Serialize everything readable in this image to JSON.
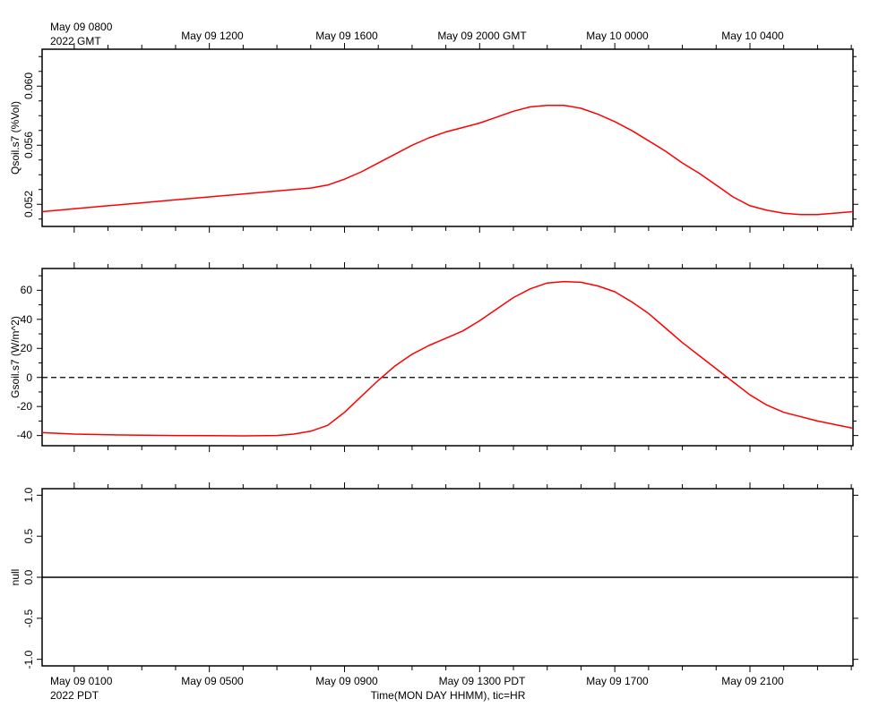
{
  "top_axis": {
    "first_label": "May 09 0800",
    "first_sub": "2022 GMT",
    "labels": [
      "May 09 1200",
      "May 09 1600",
      "May 09 2000 GMT",
      "May 10 0000",
      "May 10 0400"
    ]
  },
  "bottom_axis": {
    "first_label": "May 09 0100",
    "first_sub": "2022 PDT",
    "labels": [
      "May 09 0500",
      "May 09 0900",
      "May 09 1300 PDT",
      "May 09 1700",
      "May 09 2100"
    ],
    "title": "Time(MON DAY HHMM), tic=HR"
  },
  "colors": {
    "series": "#ff0000",
    "axis": "#000000"
  },
  "chart_data": [
    {
      "type": "line",
      "ylabel": "Qsoil.s7 (%Vol)",
      "yticks": [
        "0.052",
        "0.056",
        "0.060"
      ],
      "ylim": [
        0.0505,
        0.0625
      ],
      "x_unit": "hours since May 09 0100 PDT",
      "xlim": [
        -0.95,
        23.05
      ],
      "series": [
        {
          "x": [
            -0.95,
            0,
            1,
            2,
            3,
            4,
            5,
            6,
            7,
            7.5,
            8,
            8.5,
            9,
            9.5,
            10,
            10.5,
            11,
            11.5,
            12,
            12.5,
            13,
            13.5,
            14,
            14.5,
            15,
            15.5,
            16,
            16.5,
            17,
            17.5,
            18,
            18.5,
            19,
            19.5,
            20,
            20.5,
            21,
            21.5,
            22,
            23.05
          ],
          "y": [
            0.0515,
            0.0517,
            0.0519,
            0.0521,
            0.0523,
            0.0525,
            0.0527,
            0.0529,
            0.0531,
            0.0533,
            0.0537,
            0.0542,
            0.0548,
            0.0554,
            0.056,
            0.0565,
            0.0569,
            0.0572,
            0.0575,
            0.0579,
            0.0583,
            0.0586,
            0.0587,
            0.0587,
            0.0585,
            0.0581,
            0.0576,
            0.057,
            0.0563,
            0.0556,
            0.0548,
            0.0541,
            0.0533,
            0.0525,
            0.0519,
            0.0516,
            0.0514,
            0.0513,
            0.0513,
            0.0515
          ]
        }
      ]
    },
    {
      "type": "line",
      "ylabel": "Gsoil.s7 (W/m^2)",
      "yticks": [
        "60",
        "40",
        "20",
        "0",
        "-20",
        "-40"
      ],
      "ylim": [
        -47,
        75
      ],
      "reference_line": {
        "y": 0,
        "style": "dashed"
      },
      "x_unit": "hours since May 09 0100 PDT",
      "xlim": [
        -0.95,
        23.05
      ],
      "series": [
        {
          "x": [
            -0.95,
            0,
            1,
            2,
            3,
            4,
            5,
            6,
            6.5,
            7,
            7.5,
            8,
            8.5,
            9,
            9.5,
            10,
            10.5,
            11,
            11.5,
            12,
            12.5,
            13,
            13.5,
            14,
            14.5,
            15,
            15.5,
            16,
            16.5,
            17,
            17.5,
            18,
            18.5,
            19,
            19.5,
            20,
            20.5,
            21,
            22,
            23.05
          ],
          "y": [
            -38,
            -39,
            -39.5,
            -39.8,
            -40,
            -40.1,
            -40.2,
            -40,
            -39,
            -37,
            -33,
            -24,
            -13,
            -2,
            8,
            16,
            22,
            27,
            32,
            39,
            47,
            55,
            61,
            65,
            66,
            65.5,
            63,
            59,
            52,
            44,
            34,
            24,
            15,
            6,
            -3,
            -12,
            -19,
            -24,
            -30,
            -35
          ]
        }
      ]
    },
    {
      "type": "line",
      "ylabel": "null",
      "yticks": [
        "1.0",
        "0.5",
        "0.0",
        "-0.5",
        "-1.0"
      ],
      "ylim": [
        -1.08,
        1.08
      ],
      "x_unit": "hours since May 09 0100 PDT",
      "xlim": [
        -0.95,
        23.05
      ],
      "series": [
        {
          "x": [
            -0.95,
            23.05
          ],
          "y": [
            0,
            0
          ]
        }
      ]
    }
  ]
}
